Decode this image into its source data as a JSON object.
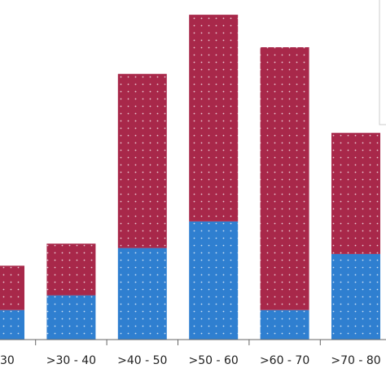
{
  "chart_data": {
    "type": "bar",
    "stacked": true,
    "categories": [
      "30",
      ">30 - 40",
      ">40 - 50",
      ">50 - 60",
      ">60 - 70",
      ">70 - 80"
    ],
    "series": [
      {
        "values": [
          2,
          3,
          6.2,
          8,
          2,
          5.8
        ]
      },
      {
        "values": [
          3,
          3.5,
          11.8,
          14,
          17.8,
          8.2
        ]
      }
    ],
    "ylim": [
      0,
      23
    ],
    "grid": false,
    "legend": "top-right",
    "colors": {
      "series_0": "#2f7fd0",
      "series_1": "#a8284a",
      "axis": "#666666",
      "pattern_dot": "#ffffff"
    }
  }
}
